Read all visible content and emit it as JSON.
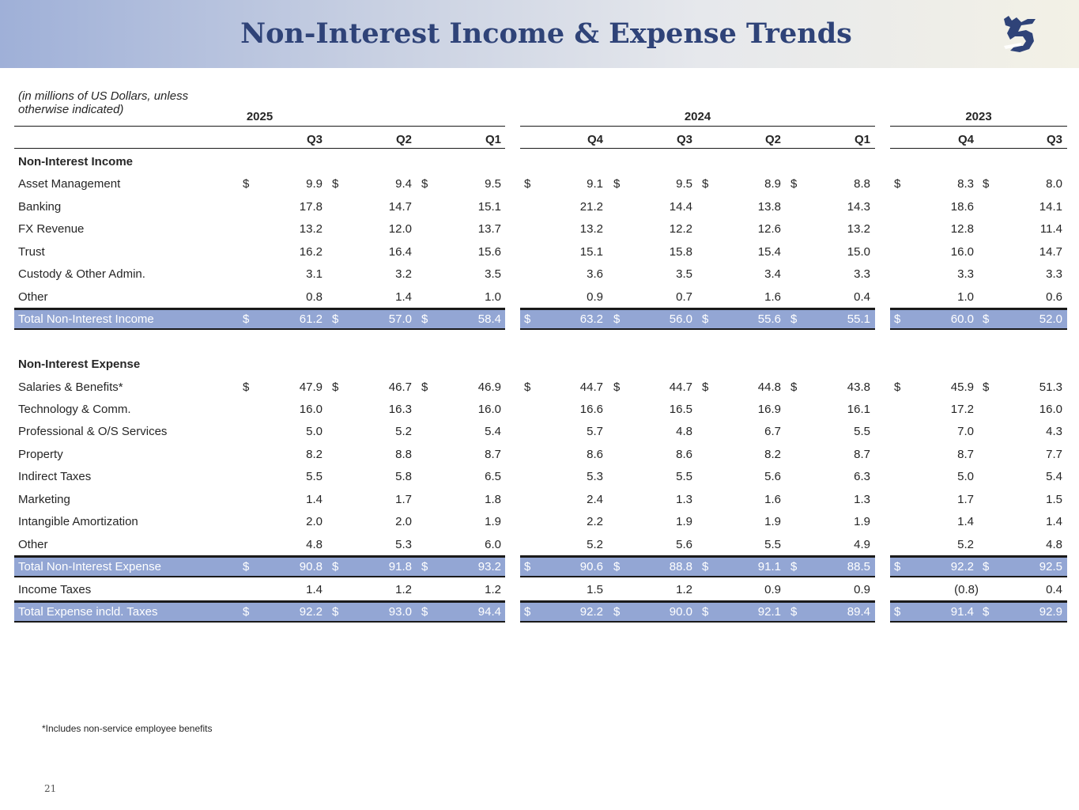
{
  "title": "Non-Interest Income & Expense Trends",
  "subtitle": "(in millions of US Dollars, unless otherwise indicated)",
  "years": [
    "2025",
    "2024",
    "2023"
  ],
  "quarters": [
    "Q3",
    "Q2",
    "Q1",
    "Q4",
    "Q3",
    "Q2",
    "Q1",
    "Q4",
    "Q3"
  ],
  "currency_symbol": "$",
  "rows": [
    {
      "type": "section",
      "label": "Non-Interest Income"
    },
    {
      "type": "data",
      "label": "Asset Management",
      "dollar": true,
      "values": [
        "9.9",
        "9.4",
        "9.5",
        "9.1",
        "9.5",
        "8.9",
        "8.8",
        "8.3",
        "8.0"
      ]
    },
    {
      "type": "data",
      "label": "Banking",
      "dollar": false,
      "values": [
        "17.8",
        "14.7",
        "15.1",
        "21.2",
        "14.4",
        "13.8",
        "14.3",
        "18.6",
        "14.1"
      ]
    },
    {
      "type": "data",
      "label": "FX Revenue",
      "dollar": false,
      "values": [
        "13.2",
        "12.0",
        "13.7",
        "13.2",
        "12.2",
        "12.6",
        "13.2",
        "12.8",
        "11.4"
      ]
    },
    {
      "type": "data",
      "label": "Trust",
      "dollar": false,
      "values": [
        "16.2",
        "16.4",
        "15.6",
        "15.1",
        "15.8",
        "15.4",
        "15.0",
        "16.0",
        "14.7"
      ]
    },
    {
      "type": "data",
      "label": "Custody & Other Admin.",
      "dollar": false,
      "values": [
        "3.1",
        "3.2",
        "3.5",
        "3.6",
        "3.5",
        "3.4",
        "3.3",
        "3.3",
        "3.3"
      ]
    },
    {
      "type": "data",
      "label": "Other",
      "dollar": false,
      "values": [
        "0.8",
        "1.4",
        "1.0",
        "0.9",
        "0.7",
        "1.6",
        "0.4",
        "1.0",
        "0.6"
      ]
    },
    {
      "type": "total",
      "label": "Total Non-Interest Income",
      "dollar": true,
      "values": [
        "61.2",
        "57.0",
        "58.4",
        "63.2",
        "56.0",
        "55.6",
        "55.1",
        "60.0",
        "52.0"
      ]
    },
    {
      "type": "spacer"
    },
    {
      "type": "section",
      "label": "Non-Interest Expense"
    },
    {
      "type": "data",
      "label": "Salaries & Benefits*",
      "dollar": true,
      "values": [
        "47.9",
        "46.7",
        "46.9",
        "44.7",
        "44.7",
        "44.8",
        "43.8",
        "45.9",
        "51.3"
      ]
    },
    {
      "type": "data",
      "label": "Technology & Comm.",
      "dollar": false,
      "values": [
        "16.0",
        "16.3",
        "16.0",
        "16.6",
        "16.5",
        "16.9",
        "16.1",
        "17.2",
        "16.0"
      ]
    },
    {
      "type": "data",
      "label": "Professional & O/S Services",
      "dollar": false,
      "values": [
        "5.0",
        "5.2",
        "5.4",
        "5.7",
        "4.8",
        "6.7",
        "5.5",
        "7.0",
        "4.3"
      ]
    },
    {
      "type": "data",
      "label": "Property",
      "dollar": false,
      "values": [
        "8.2",
        "8.8",
        "8.7",
        "8.6",
        "8.6",
        "8.2",
        "8.7",
        "8.7",
        "7.7"
      ]
    },
    {
      "type": "data",
      "label": "Indirect Taxes",
      "dollar": false,
      "values": [
        "5.5",
        "5.8",
        "6.5",
        "5.3",
        "5.5",
        "5.6",
        "6.3",
        "5.0",
        "5.4"
      ]
    },
    {
      "type": "data",
      "label": "Marketing",
      "dollar": false,
      "values": [
        "1.4",
        "1.7",
        "1.8",
        "2.4",
        "1.3",
        "1.6",
        "1.3",
        "1.7",
        "1.5"
      ]
    },
    {
      "type": "data",
      "label": "Intangible Amortization",
      "dollar": false,
      "values": [
        "2.0",
        "2.0",
        "1.9",
        "2.2",
        "1.9",
        "1.9",
        "1.9",
        "1.4",
        "1.4"
      ]
    },
    {
      "type": "data",
      "label": "Other",
      "dollar": false,
      "values": [
        "4.8",
        "5.3",
        "6.0",
        "5.2",
        "5.6",
        "5.5",
        "4.9",
        "5.2",
        "4.8"
      ]
    },
    {
      "type": "total",
      "label": "Total Non-Interest Expense",
      "dollar": true,
      "values": [
        "90.8",
        "91.8",
        "93.2",
        "90.6",
        "88.8",
        "91.1",
        "88.5",
        "92.2",
        "92.5"
      ]
    },
    {
      "type": "data",
      "label": "Income Taxes",
      "dollar": false,
      "values": [
        "1.4",
        "1.2",
        "1.2",
        "1.5",
        "1.2",
        "0.9",
        "0.9",
        "(0.8)",
        "0.4"
      ]
    },
    {
      "type": "total",
      "label": "Total Expense incld. Taxes",
      "dollar": true,
      "values": [
        "92.2",
        "93.0",
        "94.4",
        "92.2",
        "90.0",
        "92.1",
        "89.4",
        "91.4",
        "92.9"
      ]
    }
  ],
  "footnote": "*Includes non-service employee benefits",
  "page_number": "21"
}
